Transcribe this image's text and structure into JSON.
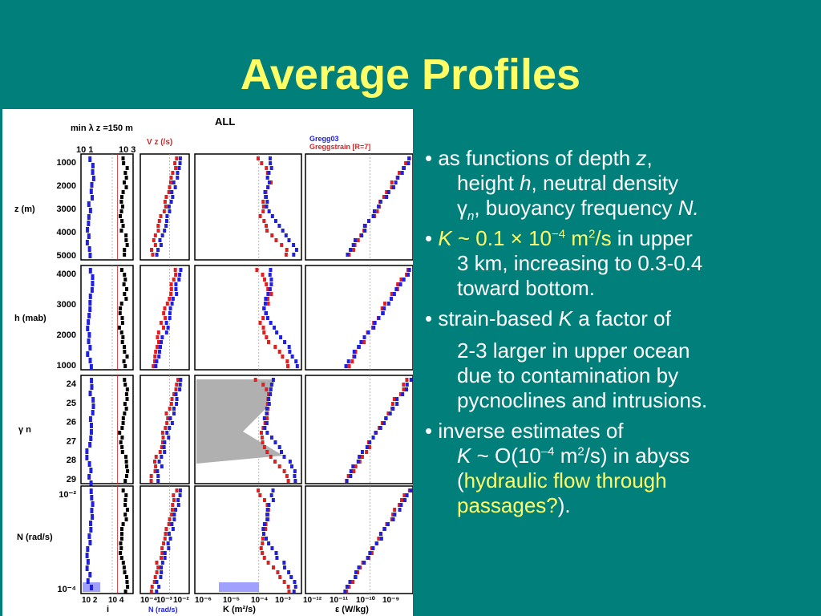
{
  "slide": {
    "title": "Average Profiles"
  },
  "figure": {
    "min_lambda_label": "min λ z =150 m",
    "all_label": "ALL",
    "legend": {
      "gregg03": "Gregg03",
      "greggstrain": "Greggstrain [R=7]"
    },
    "vz_label": "V z (/s)",
    "top_ticks": [
      "10 1",
      "10 3"
    ],
    "row_labels": [
      "z  (m)",
      "h  (mab)",
      "γ n",
      "N  (rad/s)"
    ],
    "row_ticks": [
      [
        "1000",
        "2000",
        "3000",
        "4000",
        "5000"
      ],
      [
        "4000",
        "3000",
        "2000",
        "1000"
      ],
      [
        "24",
        "25",
        "26",
        "27",
        "28",
        "29"
      ],
      [
        "10⁻²",
        "10⁻⁴"
      ]
    ],
    "bottom_ticks": [
      "10 2",
      "10 4",
      "10⁻⁴",
      "10⁻³",
      "10⁻²",
      "10⁻⁶",
      "10⁻⁵",
      "10⁻⁴",
      "10⁻³",
      "10⁻¹²",
      "10⁻¹¹",
      "10⁻¹⁰",
      "10⁻⁹"
    ],
    "col_labels": [
      "i",
      "N (rad/s)",
      "K (m²/s)",
      "ε (W/kg)"
    ],
    "colors": {
      "red": "#e02020",
      "blue": "#2020e0",
      "black": "#000000",
      "shade": "#b0b0b0",
      "lightblue": "#a0a0ff"
    }
  },
  "chart_data": {
    "type": "line",
    "title": "ALL",
    "panels": [
      {
        "row": "z (m)",
        "column": "i",
        "y_ticks": [
          1000,
          2000,
          3000,
          4000,
          5000
        ]
      },
      {
        "row": "h (mab)",
        "column": "N (rad/s)",
        "y_ticks": [
          1000,
          2000,
          3000,
          4000
        ]
      },
      {
        "row": "γn",
        "column": "K (m²/s)",
        "y_ticks": [
          24,
          25,
          26,
          27,
          28,
          29
        ]
      },
      {
        "row": "N (rad/s)",
        "column": "ε (W/kg)",
        "y_ticks": [
          "10⁻²",
          "10⁻⁴"
        ]
      }
    ],
    "series": [
      {
        "name": "Gregg03",
        "color": "#2020e0"
      },
      {
        "name": "Greggstrain [R=7]",
        "color": "#e02020"
      }
    ]
  },
  "bullets": [
    {
      "text1": "• as functions of depth ",
      "z": "z",
      "text2": ",",
      "line2a": "height ",
      "h": "h",
      "line2b": ", neutral density",
      "gamma": "γ",
      "n_sub": "n",
      "line3b": ", buoyancy frequency ",
      "N": "N."
    },
    {
      "dot": "• ",
      "K": "K",
      "tilde": " ~ 0.1 × 10",
      "exp": "−4",
      "unit": " m",
      "unit_exp": "2",
      "unit_end": "/s",
      "rest": " in upper",
      "line2": "3 km, increasing to 0.3-0.4",
      "line3": "toward bottom."
    },
    {
      "text1": "• strain-based ",
      "K": "K",
      "text2": " a factor of",
      "line2": "2-3 larger in upper ocean",
      "line3": "due to contamination by",
      "line4": "pycnoclines and intrusions."
    },
    {
      "text1": "• inverse estimates of",
      "K": "K",
      "line2a": " ~ O(10",
      "exp": "–4",
      "line2b": " m",
      "unit_exp": "2",
      "line2c": "/s) in abyss",
      "paren_open": "(",
      "hl1": "hydraulic flow through",
      "hl2": "passages?",
      "paren_close": ")."
    }
  ]
}
